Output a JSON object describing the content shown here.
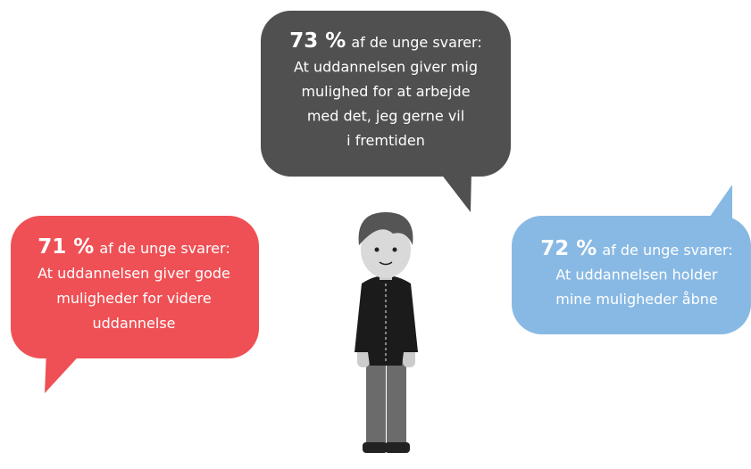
{
  "bubbles": [
    {
      "percent": "73 %",
      "lead": "af de unge svarer:",
      "lines": [
        "At uddannelsen giver mig",
        "mulighed for at arbejde",
        "med det, jeg gerne vil",
        "i fremtiden"
      ]
    },
    {
      "percent": "71 %",
      "lead": "af de unge svarer:",
      "lines": [
        "At uddannelsen giver gode",
        "muligheder for videre",
        "uddannelse"
      ]
    },
    {
      "percent": "72 %",
      "lead": "af de unge svarer:",
      "lines": [
        "At uddannelsen holder",
        "mine muligheder åbne"
      ]
    }
  ]
}
